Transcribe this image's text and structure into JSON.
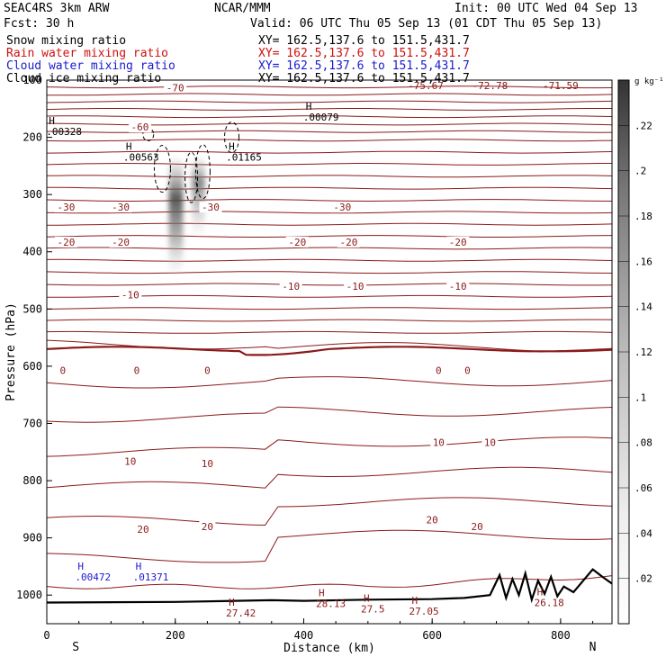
{
  "header": {
    "project": "SEAC4RS  3km ARW",
    "center": "NCAR/MMM",
    "init": "Init: 00 UTC Wed 04 Sep 13",
    "fcst": "Fcst:   30 h",
    "valid": "Valid: 06 UTC Thu 05 Sep 13 (01 CDT Thu 05 Sep 13)",
    "fields": [
      {
        "name": "Snow mixing ratio",
        "xy": "XY= 162.5,137.6 to 151.5,431.7",
        "color": "#000000"
      },
      {
        "name": "Rain water mixing ratio",
        "xy": "XY= 162.5,137.6 to 151.5,431.7",
        "color": "#d01010"
      },
      {
        "name": "Cloud water mixing ratio",
        "xy": "XY= 162.5,137.6 to 151.5,431.7",
        "color": "#1a1ad0"
      },
      {
        "name": "Cloud ice mixing ratio",
        "xy": "XY= 162.5,137.6 to 151.5,431.7",
        "color": "#000000"
      }
    ]
  },
  "colors": {
    "contour": "#8b1a1a",
    "terrain": "#000000",
    "cloud_label": "#1a1ad0",
    "shade_dark": "#444444"
  },
  "chart_data": {
    "type": "cross-section",
    "xlabel": "Distance (km)",
    "ylabel": "Pressure (hPa)",
    "xlim": [
      0,
      880
    ],
    "ylim": [
      1050,
      100
    ],
    "x_ticks": [
      0,
      200,
      400,
      600,
      800
    ],
    "y_ticks": [
      200,
      300,
      400,
      500,
      600,
      700,
      800,
      900,
      1000
    ],
    "y_top_label": "100",
    "x_end_labels": [
      "S",
      "N"
    ],
    "temperature_levels": [
      -70,
      -60,
      -50,
      -40,
      -30,
      -20,
      -10,
      0,
      10,
      20,
      30
    ],
    "temperature_labels": [
      {
        "text": "-70",
        "x": 200,
        "p": 113
      },
      {
        "text": "-60",
        "x": 145,
        "p": 182
      },
      {
        "text": "-30",
        "x": 30,
        "p": 322
      },
      {
        "text": "-30",
        "x": 115,
        "p": 322
      },
      {
        "text": "-30",
        "x": 255,
        "p": 322
      },
      {
        "text": "-30",
        "x": 460,
        "p": 322
      },
      {
        "text": "-20",
        "x": 30,
        "p": 383
      },
      {
        "text": "-20",
        "x": 115,
        "p": 383
      },
      {
        "text": "-20",
        "x": 390,
        "p": 383
      },
      {
        "text": "-20",
        "x": 470,
        "p": 383
      },
      {
        "text": "-20",
        "x": 640,
        "p": 383
      },
      {
        "text": "-10",
        "x": 130,
        "p": 475
      },
      {
        "text": "-10",
        "x": 380,
        "p": 460
      },
      {
        "text": "-10",
        "x": 480,
        "p": 460
      },
      {
        "text": "-10",
        "x": 640,
        "p": 460
      },
      {
        "text": "0",
        "x": 25,
        "p": 607
      },
      {
        "text": "0",
        "x": 140,
        "p": 607
      },
      {
        "text": "0",
        "x": 250,
        "p": 607
      },
      {
        "text": "0",
        "x": 610,
        "p": 607
      },
      {
        "text": "0",
        "x": 655,
        "p": 607
      },
      {
        "text": "10",
        "x": 130,
        "p": 766
      },
      {
        "text": "10",
        "x": 250,
        "p": 770
      },
      {
        "text": "10",
        "x": 610,
        "p": 733
      },
      {
        "text": "10",
        "x": 690,
        "p": 733
      },
      {
        "text": "20",
        "x": 150,
        "p": 885
      },
      {
        "text": "20",
        "x": 250,
        "p": 880
      },
      {
        "text": "20",
        "x": 600,
        "p": 868
      },
      {
        "text": "20",
        "x": 670,
        "p": 880
      }
    ],
    "top_values": [
      {
        "text": "-75.67",
        "x": 590
      },
      {
        "text": "-72.78",
        "x": 690
      },
      {
        "text": "-71.59",
        "x": 800
      }
    ],
    "maxima": [
      {
        "text": ".00079",
        "x": 420,
        "p": 158,
        "color": "#000000"
      },
      {
        "text": ".00328",
        "x": 20,
        "p": 183,
        "color": "#000000"
      },
      {
        "text": ".00563",
        "x": 140,
        "p": 228,
        "color": "#000000"
      },
      {
        "text": ".01165",
        "x": 300,
        "p": 228,
        "color": "#000000"
      },
      {
        "text": ".00472",
        "x": 65,
        "p": 962,
        "color": "#1a1ad0"
      },
      {
        "text": ".01371",
        "x": 155,
        "p": 962,
        "color": "#1a1ad0"
      },
      {
        "text": "27.42",
        "x": 300,
        "p": 1025,
        "color": "#8b1a1a"
      },
      {
        "text": "28.13",
        "x": 440,
        "p": 1008,
        "color": "#8b1a1a"
      },
      {
        "text": "27.5",
        "x": 510,
        "p": 1018,
        "color": "#8b1a1a"
      },
      {
        "text": "27.05",
        "x": 585,
        "p": 1022,
        "color": "#8b1a1a"
      },
      {
        "text": "26.18",
        "x": 780,
        "p": 1007,
        "color": "#8b1a1a"
      }
    ],
    "colorbar": {
      "unit": "g kg⁻¹",
      "ticks": [
        ".22",
        ".2",
        ".18",
        ".16",
        ".14",
        ".12",
        ".1",
        ".08",
        ".06",
        ".04",
        ".02"
      ],
      "min": 0,
      "max": 0.24
    }
  }
}
